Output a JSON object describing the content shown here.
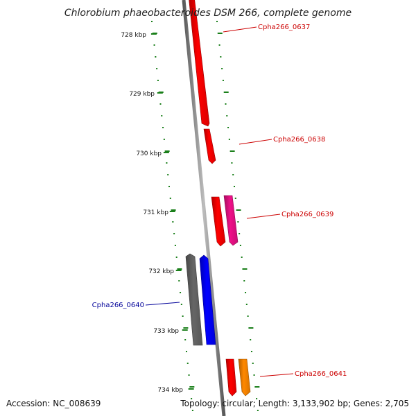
{
  "title": "Chlorobium phaeobacteroides DSM 266, complete genome",
  "footer": {
    "accession": "Accession: NC_008639",
    "topology": "Topology: circular; Length: 3,133,902 bp; Genes: 2,705"
  },
  "colors": {
    "backbone": "#888888",
    "tick": "#1a7f1a",
    "forward_label": "#cc0000",
    "reverse_label": "#000099"
  },
  "kbp_labels": [
    "728 kbp",
    "729 kbp",
    "730 kbp",
    "731 kbp",
    "732 kbp",
    "733 kbp",
    "734 kbp"
  ],
  "genes": [
    {
      "name": "Cpha266_0637",
      "strand": "+",
      "color": "#ff0000",
      "label_color": "#cc0000"
    },
    {
      "name": "Cpha266_0638",
      "strand": "+",
      "color": "#ff0000",
      "label_color": "#cc0000"
    },
    {
      "name": "Cpha266_0639",
      "strand": "+",
      "color": "#ff0000",
      "label_color": "#cc0000"
    },
    {
      "name": "",
      "strand": "+",
      "color": "#ee1188",
      "label_color": ""
    },
    {
      "name": "Cpha266_0640",
      "strand": "-",
      "color": "#0000ff",
      "label_color": "#000099"
    },
    {
      "name": "",
      "strand": "-",
      "color": "#666666",
      "label_color": ""
    },
    {
      "name": "Cpha266_0641",
      "strand": "+",
      "color": "#ff0000",
      "label_color": "#cc0000"
    },
    {
      "name": "",
      "strand": "+",
      "color": "#ff8800",
      "label_color": ""
    }
  ]
}
